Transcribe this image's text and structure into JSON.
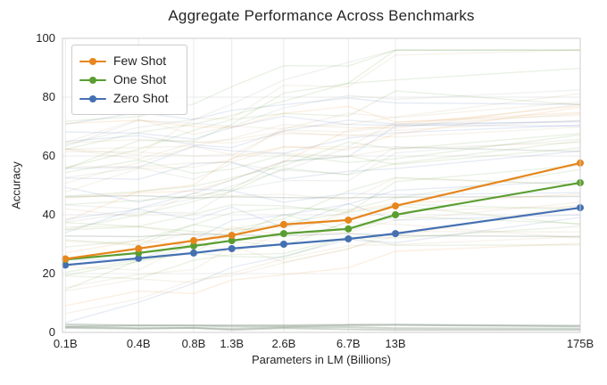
{
  "chart_data": {
    "type": "line",
    "title": "Aggregate Performance Across Benchmarks",
    "xlabel": "Parameters in LM (Billions)",
    "ylabel": "Accuracy",
    "x_scale": "log",
    "x_tick_labels": [
      "0.1B",
      "0.4B",
      "0.8B",
      "1.3B",
      "2.6B",
      "6.7B",
      "13B",
      "175B"
    ],
    "x_values_billions": [
      0.125,
      0.35,
      0.76,
      1.3,
      2.7,
      6.7,
      13,
      175
    ],
    "xlim_billions": [
      0.12,
      175
    ],
    "y_ticks": [
      0,
      20,
      40,
      60,
      80,
      100
    ],
    "ylim": [
      0,
      100
    ],
    "grid": true,
    "legend_position": "upper-left",
    "series": [
      {
        "name": "Few Shot",
        "color": "#E6861C",
        "values": [
          25.0,
          28.5,
          31.2,
          33.0,
          36.7,
          38.2,
          43.0,
          57.6
        ]
      },
      {
        "name": "One Shot",
        "color": "#5A9E32",
        "values": [
          24.8,
          27.0,
          29.4,
          31.2,
          33.6,
          35.2,
          40.0,
          50.9
        ]
      },
      {
        "name": "Zero Shot",
        "color": "#4470B2",
        "values": [
          22.9,
          25.2,
          27.0,
          28.5,
          30.0,
          31.8,
          33.6,
          42.4
        ]
      }
    ],
    "background_lines": {
      "description": "faint individual benchmark curves (decorative haze)",
      "count": 52,
      "flat_zero_count": 4,
      "flat_gray_levels": [
        46,
        33
      ],
      "opacity": 0.13,
      "palette": [
        "#5A9E32",
        "#c2a36b",
        "#4470B2",
        "#8a9a8a",
        "#E6861C"
      ],
      "seed": 7
    },
    "style": {
      "grid_color": "#ebebeb",
      "spine_color": "#cccccc",
      "text_color": "#262626"
    }
  }
}
